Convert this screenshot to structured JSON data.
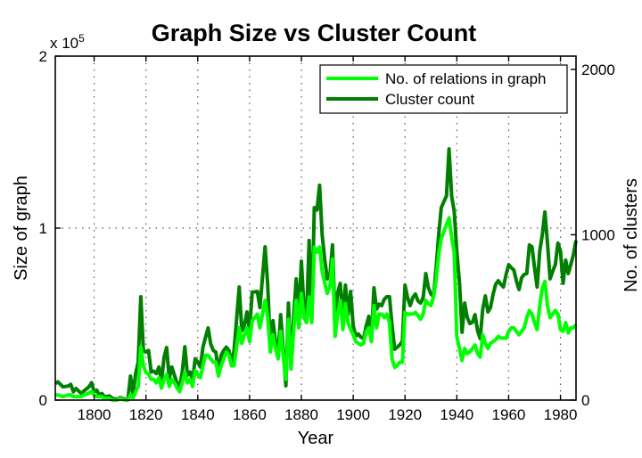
{
  "chart_data": {
    "type": "line",
    "title": "Graph Size vs Cluster Count",
    "xlabel": "Year",
    "ylabel": "Size of graph",
    "ylabel_right": "No. of clusters",
    "y_multiplier": "x 10",
    "y_multiplier_exp": "5",
    "xlim": [
      1785,
      1986
    ],
    "ylim": [
      0,
      2
    ],
    "ylim_right": [
      0,
      2080
    ],
    "grid": true,
    "legend_placement": "top-right",
    "xticks": [
      "1800",
      "1820",
      "1840",
      "1860",
      "1880",
      "1900",
      "1920",
      "1940",
      "1960",
      "1980"
    ],
    "yticks": [
      "0",
      "1",
      "2"
    ],
    "yticks_right": [
      "0",
      "1000",
      "2000"
    ],
    "x": [
      1785,
      1786,
      1788,
      1790,
      1791,
      1792,
      1793,
      1795,
      1796,
      1798,
      1799,
      1800,
      1801,
      1802,
      1803,
      1804,
      1806,
      1807,
      1809,
      1810,
      1812,
      1813,
      1814,
      1815,
      1816,
      1817,
      1818,
      1819,
      1820,
      1821,
      1822,
      1823,
      1824,
      1825,
      1826,
      1827,
      1828,
      1829,
      1830,
      1831,
      1832,
      1833,
      1834,
      1835,
      1836,
      1837,
      1838,
      1839,
      1840,
      1841,
      1842,
      1843,
      1844,
      1845,
      1846,
      1847,
      1848,
      1849,
      1850,
      1851,
      1852,
      1853,
      1854,
      1856,
      1857,
      1858,
      1859,
      1860,
      1861,
      1863,
      1864,
      1866,
      1867,
      1868,
      1869,
      1870,
      1871,
      1872,
      1873,
      1874,
      1875,
      1876,
      1877,
      1878,
      1879,
      1880,
      1881,
      1882,
      1883,
      1884,
      1885,
      1886,
      1887,
      1888,
      1889,
      1890,
      1891,
      1892,
      1893,
      1894,
      1895,
      1896,
      1897,
      1898,
      1899,
      1900,
      1901,
      1902,
      1903,
      1904,
      1905,
      1906,
      1907,
      1908,
      1909,
      1910,
      1911,
      1912,
      1913,
      1914,
      1915,
      1916,
      1917,
      1918,
      1919,
      1920,
      1921,
      1922,
      1923,
      1924,
      1925,
      1926,
      1927,
      1928,
      1929,
      1930,
      1931,
      1932,
      1933,
      1934,
      1935,
      1936,
      1937,
      1938,
      1939,
      1940,
      1941,
      1942,
      1943,
      1944,
      1945,
      1946,
      1947,
      1948,
      1949,
      1950,
      1951,
      1952,
      1953,
      1954,
      1955,
      1956,
      1957,
      1958,
      1959,
      1960,
      1961,
      1962,
      1963,
      1964,
      1965,
      1966,
      1967,
      1968,
      1969,
      1970,
      1971,
      1972,
      1973,
      1974,
      1975,
      1976,
      1977,
      1978,
      1979,
      1980,
      1981,
      1982,
      1983,
      1984,
      1985,
      1986
    ],
    "series": [
      {
        "name": "No. of relations in graph",
        "axis": "left",
        "unit": "x 10^5",
        "color": "#00ff00",
        "values": [
          0.03,
          0.03,
          0.02,
          0.03,
          0.03,
          0.02,
          0.02,
          0.02,
          0.03,
          0.04,
          0.05,
          0.03,
          0.02,
          0.02,
          0.02,
          0.01,
          0.01,
          0.0,
          0.0,
          0.01,
          0.0,
          0.0,
          0.03,
          0.01,
          0.05,
          0.08,
          0.31,
          0.2,
          0.16,
          0.15,
          0.12,
          0.12,
          0.1,
          0.13,
          0.07,
          0.12,
          0.15,
          0.08,
          0.12,
          0.1,
          0.07,
          0.05,
          0.1,
          0.16,
          0.1,
          0.12,
          0.08,
          0.17,
          0.15,
          0.13,
          0.2,
          0.26,
          0.26,
          0.24,
          0.22,
          0.22,
          0.14,
          0.2,
          0.24,
          0.28,
          0.26,
          0.2,
          0.2,
          0.42,
          0.33,
          0.38,
          0.42,
          0.34,
          0.46,
          0.5,
          0.42,
          0.58,
          0.48,
          0.28,
          0.38,
          0.3,
          0.24,
          0.4,
          0.25,
          0.12,
          0.47,
          0.18,
          0.4,
          0.58,
          0.42,
          0.62,
          0.48,
          0.45,
          0.6,
          0.45,
          0.89,
          0.86,
          0.89,
          0.75,
          0.68,
          0.62,
          0.66,
          0.82,
          0.37,
          0.5,
          0.58,
          0.41,
          0.56,
          0.45,
          0.41,
          0.38,
          0.34,
          0.33,
          0.32,
          0.33,
          0.4,
          0.42,
          0.34,
          0.55,
          0.42,
          0.5,
          0.5,
          0.48,
          0.5,
          0.45,
          0.24,
          0.19,
          0.2,
          0.22,
          0.22,
          0.51,
          0.5,
          0.5,
          0.5,
          0.51,
          0.49,
          0.47,
          0.5,
          0.58,
          0.56,
          0.55,
          0.6,
          0.7,
          0.85,
          0.94,
          0.98,
          1.02,
          1.06,
          0.95,
          0.86,
          0.37,
          0.3,
          0.23,
          0.3,
          0.27,
          0.28,
          0.3,
          0.32,
          0.27,
          0.25,
          0.38,
          0.33,
          0.3,
          0.33,
          0.34,
          0.35,
          0.37,
          0.36,
          0.36,
          0.36,
          0.4,
          0.42,
          0.42,
          0.4,
          0.38,
          0.4,
          0.42,
          0.48,
          0.52,
          0.5,
          0.45,
          0.41,
          0.55,
          0.65,
          0.69,
          0.55,
          0.48,
          0.5,
          0.52,
          0.5,
          0.41,
          0.4,
          0.45,
          0.39,
          0.42,
          0.42,
          0.44
        ]
      },
      {
        "name": "Cluster count",
        "axis": "right",
        "color": "#007f00",
        "values": [
          100,
          110,
          80,
          85,
          95,
          50,
          70,
          40,
          55,
          80,
          105,
          50,
          60,
          30,
          40,
          20,
          25,
          10,
          5,
          15,
          5,
          0,
          145,
          40,
          160,
          230,
          625,
          300,
          290,
          300,
          170,
          175,
          160,
          200,
          110,
          260,
          318,
          130,
          200,
          150,
          100,
          80,
          170,
          323,
          150,
          170,
          120,
          250,
          230,
          200,
          320,
          380,
          436,
          340,
          300,
          290,
          170,
          270,
          300,
          320,
          300,
          220,
          300,
          684,
          420,
          450,
          533,
          420,
          652,
          657,
          560,
          927,
          700,
          318,
          480,
          350,
          280,
          517,
          300,
          86,
          587,
          194,
          500,
          733,
          500,
          840,
          560,
          496,
          965,
          480,
          1164,
          1150,
          1299,
          1000,
          850,
          733,
          750,
          938,
          480,
          650,
          706,
          496,
          695,
          517,
          657,
          450,
          388,
          400,
          380,
          372,
          450,
          506,
          372,
          679,
          550,
          580,
          571,
          610,
          625,
          625,
          450,
          307,
          320,
          334,
          356,
          695,
          620,
          571,
          620,
          641,
          600,
          587,
          620,
          765,
          680,
          641,
          625,
          800,
          1000,
          1164,
          1200,
          1234,
          1519,
          1234,
          1142,
          900,
          711,
          410,
          587,
          500,
          463,
          470,
          517,
          420,
          372,
          550,
          630,
          533,
          560,
          640,
          700,
          722,
          700,
          684,
          760,
          819,
          800,
          787,
          720,
          668,
          740,
          760,
          765,
          938,
          927,
          800,
          684,
          900,
          1000,
          1137,
          950,
          733,
          780,
          819,
          949,
          900,
          706,
          846,
          765,
          820,
          880,
          965
        ]
      }
    ]
  }
}
